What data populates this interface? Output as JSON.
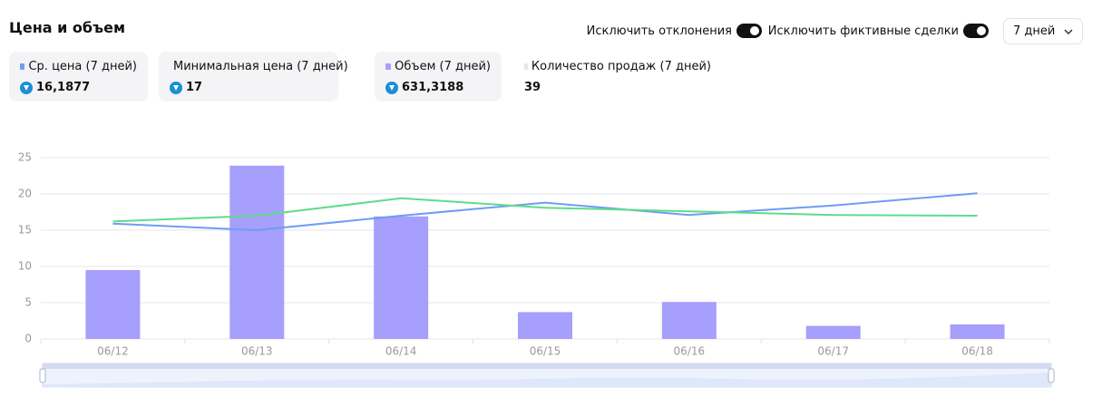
{
  "header": {
    "title": "Цена и объем",
    "toggles": [
      "Исключить отклонения",
      "Исключить фиктивные сделки"
    ],
    "period": "7 дней"
  },
  "chart_data": {
    "type": "bar",
    "categories": [
      "06/12",
      "06/13",
      "06/14",
      "06/15",
      "06/16",
      "06/17",
      "06/18"
    ],
    "series": [
      {
        "name": "Ср. цена (7 дней)",
        "summary": "16,1877",
        "type": "line",
        "color": "#6f9cf5",
        "values": [
          15.9,
          15.0,
          17.0,
          18.8,
          17.1,
          18.4,
          20.1
        ]
      },
      {
        "name": "Минимальная цена (7 дней)",
        "summary": "17",
        "type": "line",
        "color": "#5fdc8a",
        "values": [
          16.2,
          17.0,
          19.4,
          18.1,
          17.6,
          17.1,
          17.0
        ]
      },
      {
        "name": "Объем (7 дней)",
        "summary": "631,3188",
        "type": "bar",
        "color": "#a69ffc",
        "values": [
          9.5,
          23.9,
          16.9,
          3.7,
          5.1,
          1.8,
          2.0
        ]
      }
    ],
    "sales_count": {
      "name": "Количество продаж (7 дней)",
      "value": "39",
      "color": "#e6e6e6"
    },
    "ylim": [
      0,
      25
    ],
    "yticks": [
      0,
      5,
      10,
      15,
      20,
      25
    ],
    "grid": true
  }
}
